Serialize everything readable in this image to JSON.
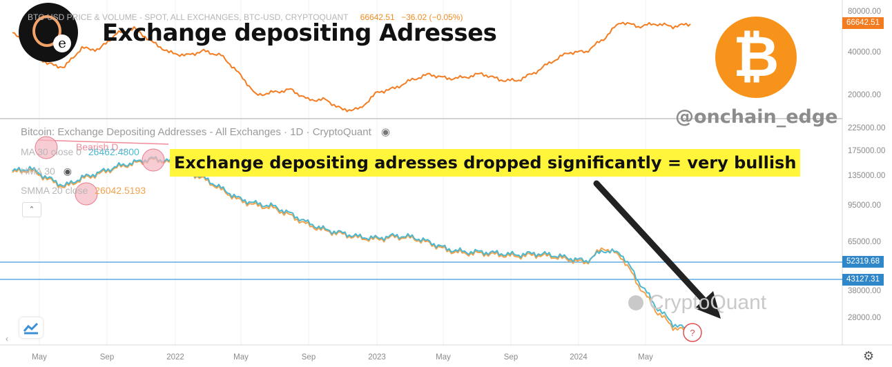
{
  "title": "Exchange depositing Adresses",
  "handle": "@onchain_edge",
  "callout": "Exchange depositing adresses dropped significantly = very bullish",
  "top_panel": {
    "header": "BTC-USD PRICE & VOLUME - SPOT, ALL EXCHANGES, BTC-USD, CRYPTOQUANT",
    "last_value": "66642.51",
    "change": "−36.02 (−0.05%)",
    "price_badge": "66642.51",
    "y_ticks": [
      "80000.00",
      "40000.00",
      "20000.00"
    ],
    "colors": {
      "price": "#f47c20",
      "badge": "#f47c20"
    }
  },
  "bottom_panel": {
    "header": "Bitcoin: Exchange Depositing Addresses - All Exchanges · 1D · CryptoQuant",
    "legend": [
      {
        "label": "MA 30 close 0",
        "value": "26462.4800"
      },
      {
        "label": "HMA 30",
        "value": ""
      },
      {
        "label": "SMMA 20 close",
        "value": "26042.5193"
      }
    ],
    "annotation": "Bearish D...",
    "y_ticks": [
      "225000.00",
      "175000.00",
      "135000.00",
      "95000.00",
      "65000.00",
      "38000.00",
      "28000.00"
    ],
    "horizontal_levels": [
      {
        "value": 52319.68,
        "label": "52319.68"
      },
      {
        "value": 43127.31,
        "label": "43127.31"
      }
    ],
    "question_mark": "?",
    "colors": {
      "hma": "#4bb8d0",
      "smma": "#f2a24a",
      "level": "#3a9ad9",
      "circle": "#f08a9a"
    }
  },
  "x_ticks": [
    "May",
    "Sep",
    "2022",
    "May",
    "Sep",
    "2023",
    "May",
    "Sep",
    "2024",
    "May"
  ],
  "watermark": "CryptoQuant",
  "btc_symbol": "₿",
  "avatar_letter": "e",
  "chart_data": [
    {
      "type": "line",
      "title": "BTC-USD PRICE & VOLUME - SPOT, ALL EXCHANGES, BTC-USD, CRYPTOQUANT",
      "scale": "log",
      "ylim": [
        15000,
        90000
      ],
      "x": [
        "2021-04",
        "2021-05",
        "2021-06",
        "2021-07",
        "2021-08",
        "2021-09",
        "2021-10",
        "2021-11",
        "2021-12",
        "2022-01",
        "2022-02",
        "2022-03",
        "2022-04",
        "2022-05",
        "2022-06",
        "2022-07",
        "2022-08",
        "2022-09",
        "2022-10",
        "2022-11",
        "2022-12",
        "2023-01",
        "2023-02",
        "2023-03",
        "2023-04",
        "2023-05",
        "2023-06",
        "2023-07",
        "2023-08",
        "2023-09",
        "2023-10",
        "2023-11",
        "2023-12",
        "2024-01",
        "2024-02",
        "2024-03",
        "2024-04",
        "2024-05",
        "2024-06",
        "2024-07"
      ],
      "series": [
        {
          "name": "BTC-USD",
          "values": [
            58000,
            44000,
            35000,
            33000,
            45000,
            44000,
            57000,
            62000,
            50000,
            42000,
            40000,
            43000,
            40000,
            30000,
            21000,
            22000,
            23000,
            19500,
            19500,
            16500,
            16800,
            22000,
            23500,
            27000,
            29500,
            27500,
            28000,
            29800,
            27000,
            26500,
            30000,
            36000,
            42000,
            42500,
            52000,
            69000,
            64000,
            67000,
            64000,
            66642
          ]
        }
      ]
    },
    {
      "type": "line",
      "title": "Bitcoin: Exchange Depositing Addresses - All Exchanges · 1D · CryptoQuant",
      "scale": "log",
      "ylim": [
        24000,
        240000
      ],
      "x": [
        "2021-04",
        "2021-05",
        "2021-06",
        "2021-07",
        "2021-08",
        "2021-09",
        "2021-10",
        "2021-11",
        "2021-12",
        "2022-01",
        "2022-02",
        "2022-03",
        "2022-04",
        "2022-05",
        "2022-06",
        "2022-07",
        "2022-08",
        "2022-09",
        "2022-10",
        "2022-11",
        "2022-12",
        "2023-01",
        "2023-02",
        "2023-03",
        "2023-04",
        "2023-05",
        "2023-06",
        "2023-07",
        "2023-08",
        "2023-09",
        "2023-10",
        "2023-11",
        "2023-12",
        "2024-01",
        "2024-02",
        "2024-03",
        "2024-04",
        "2024-05",
        "2024-06",
        "2024-07"
      ],
      "series": [
        {
          "name": "HMA 30",
          "values": [
            150000,
            155000,
            140000,
            128000,
            140000,
            148000,
            158000,
            165000,
            172000,
            168000,
            152000,
            140000,
            125000,
            112000,
            106000,
            103000,
            95000,
            86000,
            80000,
            77000,
            74000,
            73000,
            75000,
            74000,
            70000,
            65000,
            63000,
            63000,
            62000,
            61000,
            62000,
            61000,
            59000,
            57000,
            64000,
            62000,
            46000,
            35000,
            29000,
            27000
          ]
        },
        {
          "name": "SMMA 20",
          "values": [
            148000,
            152000,
            138000,
            126000,
            138000,
            146000,
            156000,
            163000,
            170000,
            166000,
            150000,
            138000,
            123000,
            110000,
            104000,
            101000,
            93000,
            84000,
            79000,
            76000,
            73000,
            72000,
            74000,
            73000,
            69000,
            64000,
            62000,
            62000,
            61000,
            60000,
            61000,
            60000,
            58000,
            56000,
            66000,
            60000,
            44000,
            33500,
            28000,
            26500
          ]
        }
      ]
    }
  ]
}
